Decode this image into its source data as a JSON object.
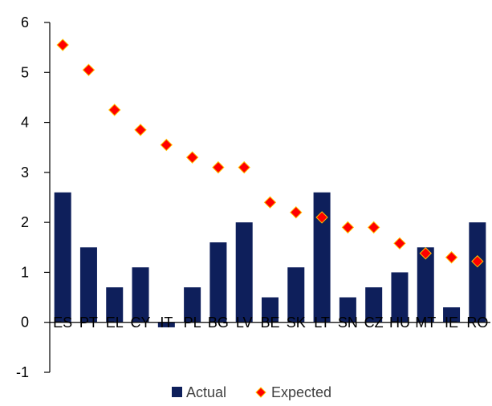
{
  "chart_data": {
    "type": "bar",
    "categories": [
      "ES",
      "PT",
      "EL",
      "CY",
      "IT",
      "PL",
      "BG",
      "LV",
      "BE",
      "SK",
      "LT",
      "SN",
      "CZ",
      "HU",
      "MT",
      "IE",
      "RO"
    ],
    "series": [
      {
        "name": "Actual",
        "kind": "bar",
        "color": "#0E1F5B",
        "values": [
          2.6,
          1.5,
          0.7,
          1.1,
          -0.1,
          0.7,
          1.6,
          2.0,
          0.5,
          1.1,
          2.6,
          0.5,
          0.7,
          1.0,
          1.5,
          0.3,
          2.0
        ]
      },
      {
        "name": "Expected",
        "kind": "marker",
        "marker": "diamond",
        "color": "#FF0000",
        "edge_color": "#FFC000",
        "values": [
          5.55,
          5.05,
          4.25,
          3.85,
          3.55,
          3.3,
          3.1,
          3.1,
          2.4,
          2.2,
          2.1,
          1.9,
          1.9,
          1.58,
          1.38,
          1.3,
          1.22
        ]
      }
    ],
    "ylim": [
      -1,
      6
    ],
    "yticks": [
      -1,
      0,
      1,
      2,
      3,
      4,
      5,
      6
    ],
    "xlabel": "",
    "ylabel": "",
    "grid": false,
    "legend": "bottom"
  }
}
